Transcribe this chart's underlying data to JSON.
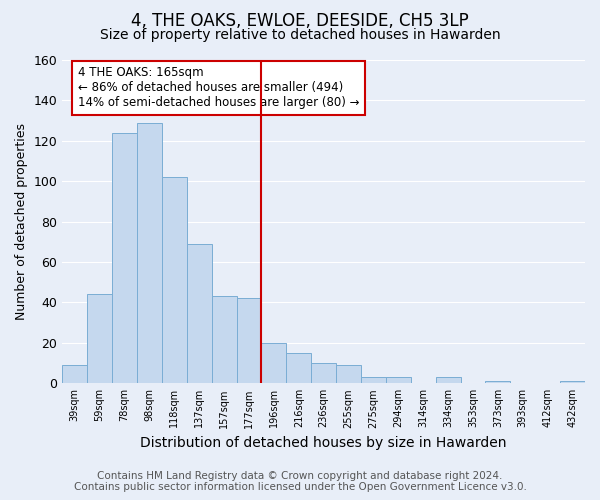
{
  "title": "4, THE OAKS, EWLOE, DEESIDE, CH5 3LP",
  "subtitle": "Size of property relative to detached houses in Hawarden",
  "xlabel": "Distribution of detached houses by size in Hawarden",
  "ylabel": "Number of detached properties",
  "bar_labels": [
    "39sqm",
    "59sqm",
    "78sqm",
    "98sqm",
    "118sqm",
    "137sqm",
    "157sqm",
    "177sqm",
    "196sqm",
    "216sqm",
    "236sqm",
    "255sqm",
    "275sqm",
    "294sqm",
    "314sqm",
    "334sqm",
    "353sqm",
    "373sqm",
    "393sqm",
    "412sqm",
    "432sqm"
  ],
  "bar_values": [
    9,
    44,
    124,
    129,
    102,
    69,
    43,
    42,
    20,
    15,
    10,
    9,
    3,
    3,
    0,
    3,
    0,
    1,
    0,
    0,
    1
  ],
  "bar_color": "#c5d8ee",
  "bar_edge_color": "#7aadd4",
  "vline_color": "#cc0000",
  "ylim": [
    0,
    160
  ],
  "yticks": [
    0,
    20,
    40,
    60,
    80,
    100,
    120,
    140,
    160
  ],
  "annotation_title": "4 THE OAKS: 165sqm",
  "annotation_line1": "← 86% of detached houses are smaller (494)",
  "annotation_line2": "14% of semi-detached houses are larger (80) →",
  "annotation_box_color": "#ffffff",
  "annotation_box_edge": "#cc0000",
  "footer_line1": "Contains HM Land Registry data © Crown copyright and database right 2024.",
  "footer_line2": "Contains public sector information licensed under the Open Government Licence v3.0.",
  "bg_color": "#e8eef8",
  "plot_bg_color": "#e8eef8",
  "grid_color": "#ffffff",
  "title_fontsize": 12,
  "subtitle_fontsize": 10,
  "xlabel_fontsize": 10,
  "ylabel_fontsize": 9,
  "footer_fontsize": 7.5,
  "vline_x_idx": 7.5
}
